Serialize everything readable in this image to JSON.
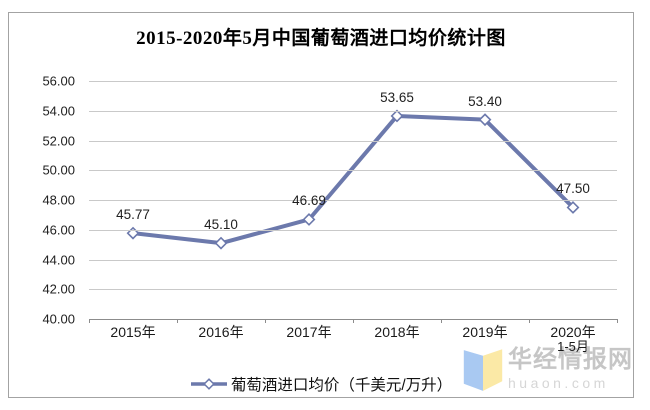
{
  "title": "2015-2020年5月中国葡萄酒进口均价统计图",
  "chart_data": {
    "type": "line",
    "title": "2015-2020年5月中国葡萄酒进口均价统计图",
    "categories": [
      "2015年",
      "2016年",
      "2017年",
      "2018年",
      "2019年",
      "2020年"
    ],
    "category_sublabels": [
      "",
      "",
      "",
      "",
      "",
      "1-5月"
    ],
    "series": [
      {
        "name": "葡萄酒进口均价（千美元/万升）",
        "values": [
          45.77,
          45.1,
          46.69,
          53.65,
          53.4,
          47.5
        ]
      }
    ],
    "value_labels": [
      "45.77",
      "45.10",
      "46.69",
      "53.65",
      "53.40",
      "47.50"
    ],
    "xlabel": "",
    "ylabel": "",
    "ylim": [
      40,
      56
    ],
    "ytick_step": 2,
    "ytick_labels": [
      "56.00",
      "54.00",
      "52.00",
      "50.00",
      "48.00",
      "46.00",
      "44.00",
      "42.00",
      "40.00"
    ],
    "grid": true,
    "legend_position": "bottom",
    "marker": "diamond-white-fill"
  },
  "legend": {
    "label": "葡萄酒进口均价（千美元/万升）"
  },
  "watermark": {
    "site_name": "华经情报网",
    "site_url": "huaon.com",
    "icon": "open-book-icon"
  },
  "colors": {
    "line": "#6C79AC",
    "marker_fill": "#FFFFFF",
    "grid": "#C9C9C9",
    "axis": "#8C8C8C",
    "frame_border": "#A3A3A3",
    "text": "#1F1F1F",
    "watermark_text": "#C6C6C6",
    "watermark_url": "#D6D6D6",
    "book_left": "#A9C9F2",
    "book_right": "#FBE9A6"
  }
}
